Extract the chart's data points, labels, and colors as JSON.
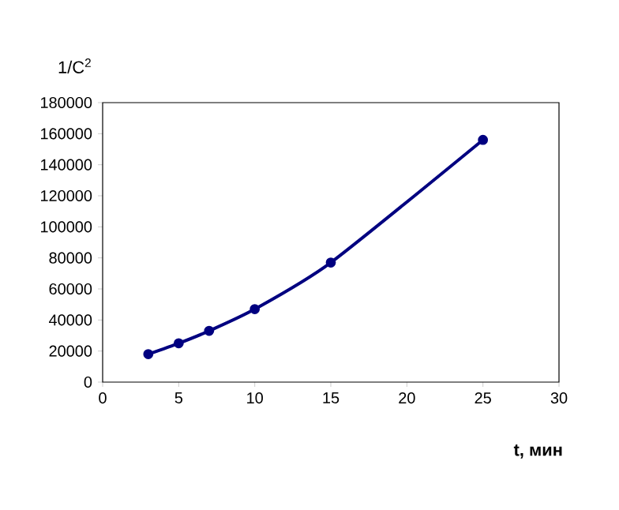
{
  "chart_data": {
    "type": "line",
    "xlabel": "t, мин",
    "ylabel": "1/C$^{2}$",
    "series": [
      {
        "color": "#000080",
        "x": [
          3,
          5,
          7,
          10,
          15,
          25
        ],
        "values": [
          18000,
          25000,
          33000,
          47000,
          77000,
          156000
        ]
      }
    ],
    "xlim": [
      0,
      30
    ],
    "xticks": [
      0,
      5,
      10,
      15,
      20,
      25,
      30
    ],
    "ylim": [
      0,
      180000
    ],
    "yticks": [
      0,
      20000,
      40000,
      60000,
      80000,
      100000,
      120000,
      140000,
      160000,
      180000
    ],
    "marker": "circle",
    "line_style": "solid"
  }
}
